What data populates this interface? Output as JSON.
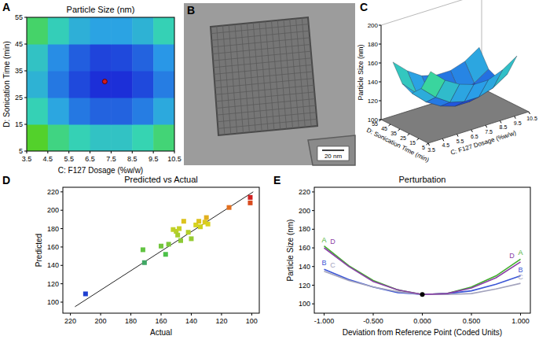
{
  "chart_data": [
    {
      "type": "contour",
      "panel": "A",
      "title": "Particle Size (nm)",
      "x_label": "C: F127 Dosage (%w/w)",
      "y_label": "D: Sonication Time (min)",
      "x": [
        4,
        5,
        6,
        7,
        8,
        9,
        10
      ],
      "y": [
        10,
        20,
        30,
        40,
        50
      ],
      "z": [
        [
          171,
          157,
          148,
          143,
          143,
          149,
          159
        ],
        [
          148,
          134,
          124,
          120,
          120,
          125,
          135
        ],
        [
          138,
          124,
          115,
          110,
          110,
          115,
          125
        ],
        [
          143,
          128,
          119,
          114,
          115,
          120,
          130
        ],
        [
          161,
          147,
          137,
          133,
          133,
          138,
          148
        ]
      ],
      "xlim": [
        3.5,
        10.5
      ],
      "ylim": [
        5,
        55
      ],
      "xticks": [
        3.5,
        4.5,
        5.5,
        6.5,
        7.5,
        8.5,
        9.5,
        10.5
      ],
      "yticks": [
        5,
        15,
        25,
        35,
        45,
        55
      ],
      "points": {
        "x": [
          7.2
        ],
        "y": [
          31
        ]
      }
    },
    {
      "type": "image",
      "panel": "B",
      "scale_bar": "20 nm"
    },
    {
      "type": "surface",
      "panel": "C",
      "z_label": "Particle Size (nm)",
      "x_label": "C: F127 Dosage (%w/w)",
      "y_label": "D: Sonication Time (min)",
      "x": [
        4,
        5,
        6,
        7,
        8,
        9,
        10
      ],
      "y": [
        10,
        20,
        30,
        40,
        50
      ],
      "z": [
        [
          171,
          157,
          148,
          143,
          143,
          149,
          159
        ],
        [
          148,
          134,
          124,
          120,
          120,
          125,
          135
        ],
        [
          138,
          124,
          115,
          110,
          110,
          115,
          125
        ],
        [
          143,
          128,
          119,
          114,
          115,
          120,
          130
        ],
        [
          161,
          147,
          137,
          133,
          133,
          138,
          148
        ]
      ],
      "xlim": [
        3.5,
        10.5
      ],
      "ylim": [
        5,
        55
      ],
      "zlim": [
        100,
        200
      ],
      "xticks": [
        3.5,
        4.5,
        5.5,
        6.5,
        7.5,
        8.5,
        9.5,
        10.5
      ],
      "yticks": [
        5,
        15,
        25,
        35,
        45,
        55
      ],
      "zticks": [
        100,
        120,
        140,
        160,
        180,
        200
      ]
    },
    {
      "type": "scatter",
      "panel": "D",
      "title": "Predicted vs Actual",
      "x_label": "Actual",
      "y_label": "Predicted",
      "x": [
        210,
        172,
        171,
        160,
        157,
        155,
        152,
        150,
        149,
        148,
        147,
        145,
        142,
        140,
        137,
        135,
        134,
        131,
        130,
        129,
        115,
        101,
        101
      ],
      "values": [
        109,
        157,
        143,
        161,
        152,
        163,
        179,
        177,
        173,
        180,
        167,
        188,
        176,
        169,
        184,
        188,
        182,
        187,
        192,
        185,
        203,
        208,
        214
      ],
      "marker": "square",
      "fit_line": {
        "x": [
          217,
          99
        ],
        "values": [
          95,
          220
        ]
      },
      "xlim": [
        225,
        95
      ],
      "ylim": [
        88,
        225
      ],
      "xticks": [
        220,
        200,
        180,
        160,
        140,
        120,
        100
      ],
      "yticks": [
        100,
        120,
        140,
        160,
        180,
        200,
        220
      ]
    },
    {
      "type": "line",
      "panel": "E",
      "title": "Perturbation",
      "x_label": "Deviation from Reference Point (Coded Units)",
      "y_label": "Particle Size (nm)",
      "x": [
        -1,
        -0.75,
        -0.5,
        -0.25,
        0,
        0.25,
        0.5,
        0.75,
        1
      ],
      "series": [
        {
          "name": "A",
          "color": "#3fae2a",
          "values": [
            162,
            141,
            125,
            115,
            110,
            111,
            118,
            130,
            148
          ]
        },
        {
          "name": "B",
          "color": "#3b56d6",
          "values": [
            137,
            126,
            118,
            112,
            110,
            111,
            114,
            121,
            130
          ]
        },
        {
          "name": "C",
          "color": "#a3a3bd",
          "values": [
            135,
            125,
            118,
            113,
            110,
            110,
            111,
            116,
            122
          ]
        },
        {
          "name": "D",
          "color": "#8a3fa6",
          "values": [
            160,
            140,
            124,
            115,
            110,
            111,
            117,
            128,
            145
          ]
        }
      ],
      "reference_point": {
        "x": 0,
        "y": 110
      },
      "xlim": [
        -1.1,
        1.1
      ],
      "ylim": [
        90,
        225
      ],
      "xticks": [
        {
          "value": -1,
          "label": "-1.000"
        },
        {
          "value": -0.5,
          "label": "-0.500"
        },
        {
          "value": 0,
          "label": "0.000"
        },
        {
          "value": 0.5,
          "label": "0.500"
        },
        {
          "value": 1,
          "label": "1.000"
        }
      ],
      "yticks": [
        100,
        120,
        140,
        160,
        180,
        200,
        220
      ]
    }
  ]
}
